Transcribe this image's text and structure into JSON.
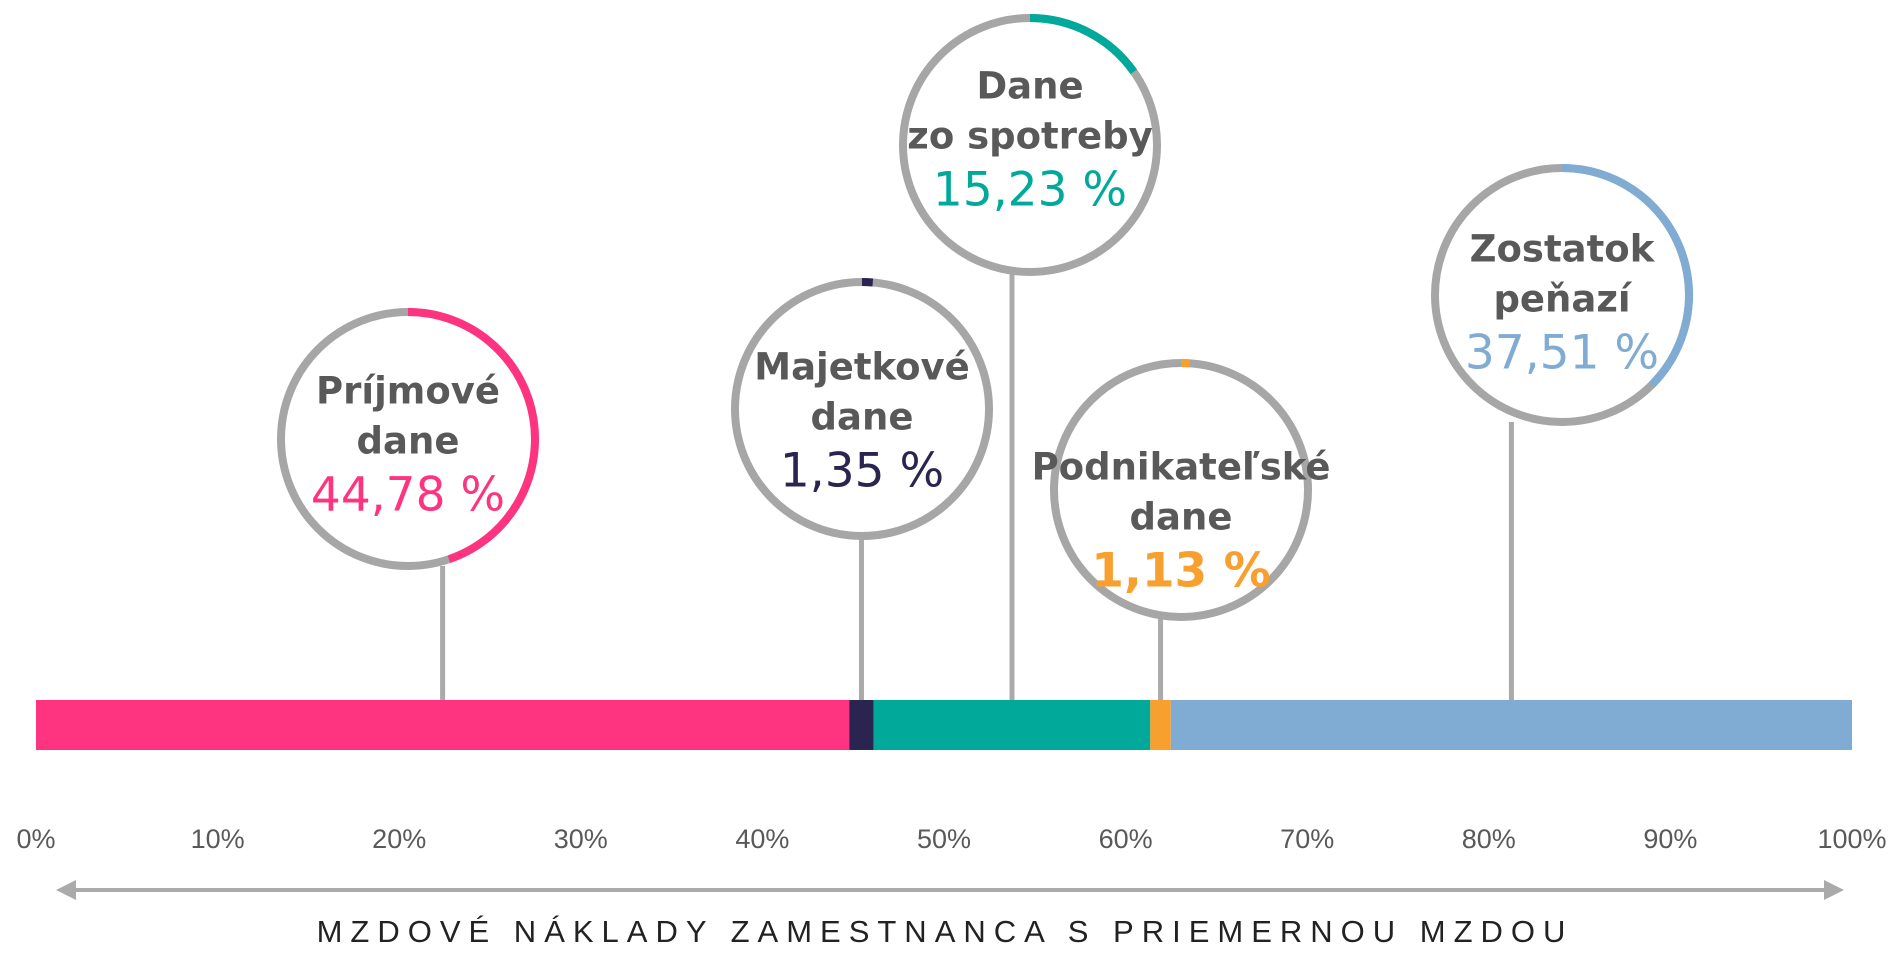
{
  "chart_data": {
    "type": "stacked-bar-callouts",
    "x_label": "MZDOVÉ NÁKLADY ZAMESTNANCA S PRIEMERNOU MZDOU",
    "xlim": [
      0,
      100
    ],
    "xticks": [
      {
        "value": 0,
        "label": "0%"
      },
      {
        "value": 10,
        "label": "10%"
      },
      {
        "value": 20,
        "label": "20%"
      },
      {
        "value": 30,
        "label": "30%"
      },
      {
        "value": 40,
        "label": "40%"
      },
      {
        "value": 50,
        "label": "50%"
      },
      {
        "value": 60,
        "label": "60%"
      },
      {
        "value": 70,
        "label": "70%"
      },
      {
        "value": 80,
        "label": "80%"
      },
      {
        "value": 90,
        "label": "90%"
      },
      {
        "value": 100,
        "label": "100%"
      }
    ],
    "series": [
      {
        "name": [
          "Príjmové",
          "dane"
        ],
        "color": "#ff3481",
        "values": [
          44.78
        ],
        "value_labels": [
          "44,78 %"
        ]
      },
      {
        "name": [
          "Majetkové",
          "dane"
        ],
        "color": "#2a2550",
        "values": [
          1.35
        ],
        "value_labels": [
          "1,35 %"
        ]
      },
      {
        "name": [
          "Dane",
          "zo spotreby"
        ],
        "color": "#00a99a",
        "values": [
          15.23
        ],
        "value_labels": [
          "15,23 %"
        ]
      },
      {
        "name": [
          "Podnikateľské",
          "dane"
        ],
        "color": "#f7a030",
        "values": [
          1.13
        ],
        "value_labels": [
          "1,13 %"
        ]
      },
      {
        "name": [
          "Zostatok",
          "peňazí"
        ],
        "color": "#80acd4",
        "values": [
          37.51
        ],
        "value_labels": [
          "37,51 %"
        ]
      }
    ]
  }
}
